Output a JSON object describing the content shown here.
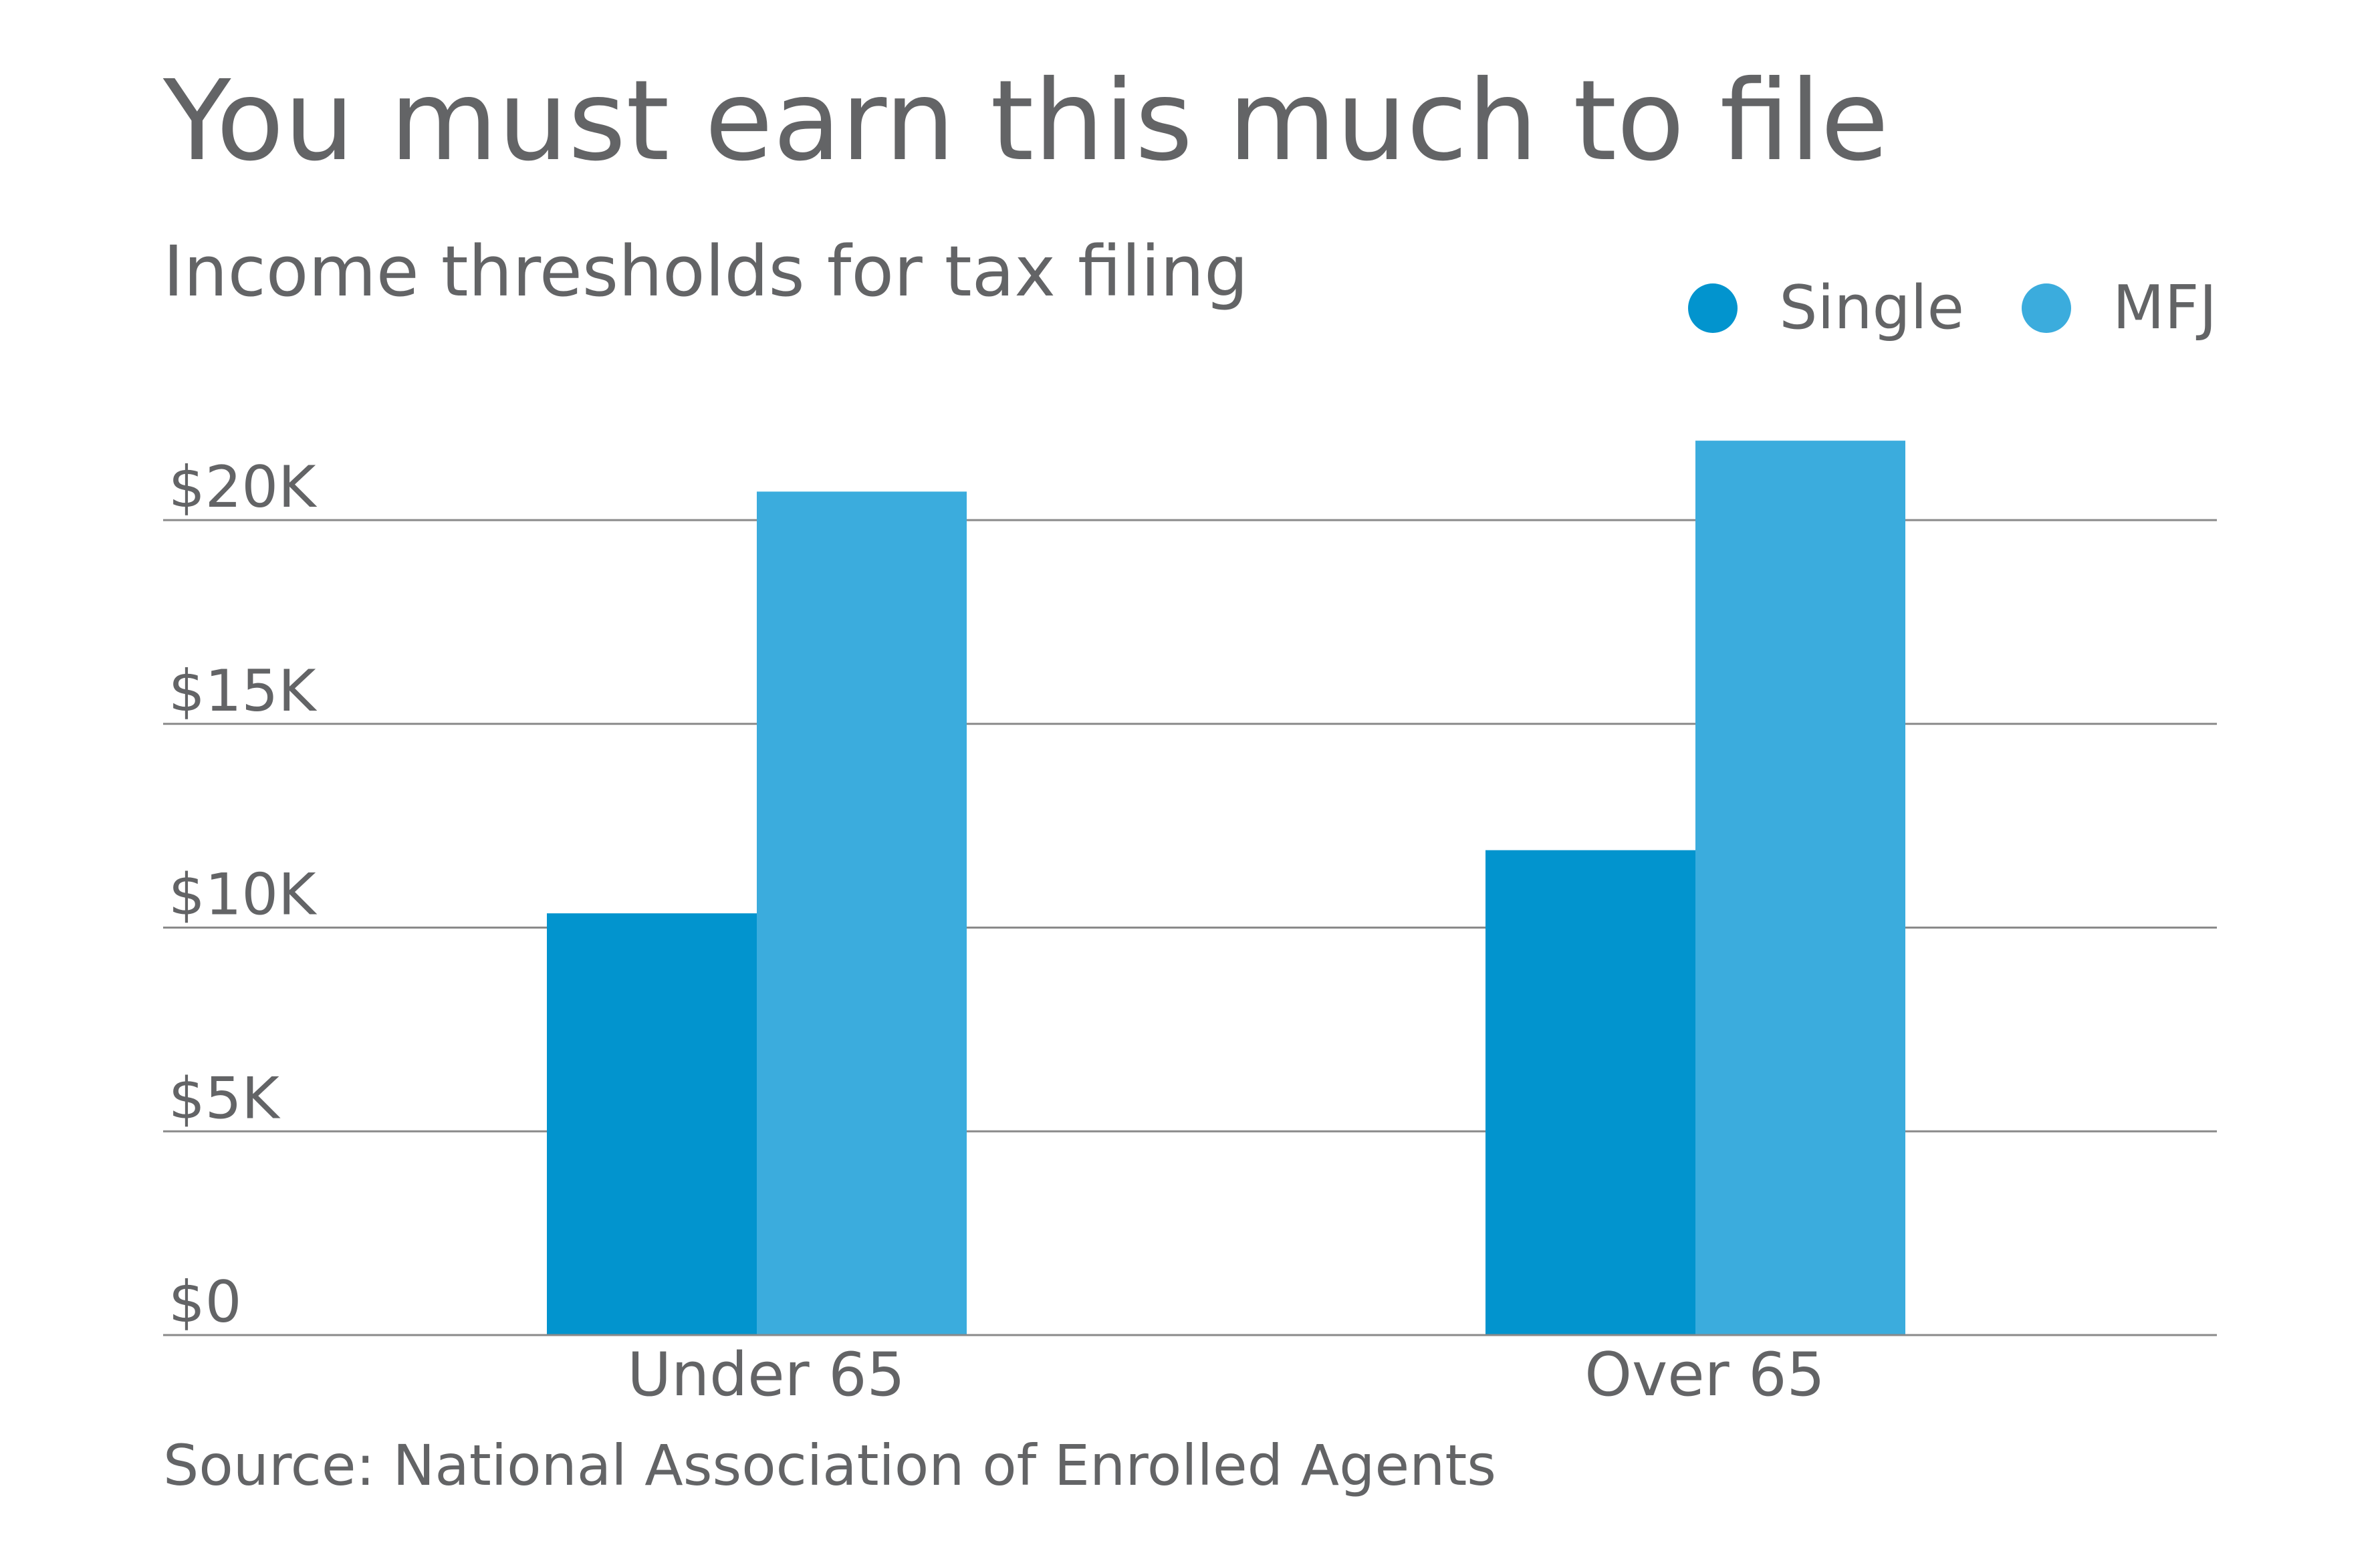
{
  "chart_data": {
    "type": "bar",
    "title": "You must earn this much to file",
    "subtitle": "Income thresholds for tax filing",
    "categories": [
      "Under 65",
      "Over 65"
    ],
    "series": [
      {
        "name": "Single",
        "values": [
          10350,
          11900
        ],
        "color": "#0294CE"
      },
      {
        "name": "MFJ",
        "values": [
          20700,
          21950
        ],
        "color": "#3BACDD"
      }
    ],
    "ylim": [
      0,
      20000
    ],
    "y_ticks": [
      0,
      5000,
      10000,
      15000,
      20000
    ],
    "y_tick_labels": [
      "$0",
      "$5K",
      "$10K",
      "$15K",
      "$20K"
    ],
    "xlabel": "",
    "ylabel": "",
    "grid": true,
    "legend_position": "top-right",
    "source": "Source: National Association of Enrolled Agents"
  }
}
